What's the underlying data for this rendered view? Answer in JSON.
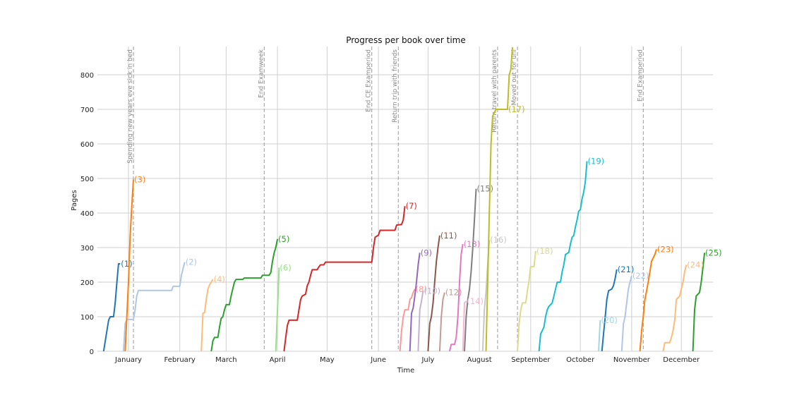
{
  "chart_data": {
    "type": "line",
    "title": "Progress per book over time",
    "xlabel": "Time",
    "ylabel": "Pages",
    "ylim": [
      0,
      880
    ],
    "xlim_days": [
      -19,
      352
    ],
    "grid": true,
    "legend": "none (inline end labels)",
    "x_ticks": [
      {
        "label": "January",
        "day": 0
      },
      {
        "label": "February",
        "day": 31
      },
      {
        "label": "March",
        "day": 59
      },
      {
        "label": "April",
        "day": 90
      },
      {
        "label": "May",
        "day": 120
      },
      {
        "label": "June",
        "day": 151
      },
      {
        "label": "July",
        "day": 181
      },
      {
        "label": "August",
        "day": 212
      },
      {
        "label": "September",
        "day": 243
      },
      {
        "label": "October",
        "day": 273
      },
      {
        "label": "November",
        "day": 304
      },
      {
        "label": "December",
        "day": 334
      }
    ],
    "y_ticks": [
      0,
      100,
      200,
      300,
      400,
      500,
      600,
      700,
      800
    ],
    "events": [
      {
        "label": "Spending new years eve sick in bed",
        "day": 3
      },
      {
        "label": "End Examweek",
        "day": 82
      },
      {
        "label": "End CE Examperiod",
        "day": 147
      },
      {
        "label": "Return trip with friends",
        "day": 163
      },
      {
        "label": "Return travel with parents",
        "day": 223
      },
      {
        "label": "Moved out for uni",
        "day": 235
      },
      {
        "label": "End Examperiod",
        "day": 311
      }
    ],
    "series": [
      {
        "name": "(1)",
        "color": "#1f77b4",
        "points": [
          [
            -15,
            0
          ],
          [
            -13,
            60
          ],
          [
            -12,
            90
          ],
          [
            -11,
            100
          ],
          [
            -9,
            100
          ],
          [
            -8,
            140
          ],
          [
            -7,
            200
          ],
          [
            -6,
            253
          ],
          [
            -5,
            253
          ]
        ]
      },
      {
        "name": "(2)",
        "color": "#aec7e8",
        "points": [
          [
            -3,
            0
          ],
          [
            -2,
            80
          ],
          [
            -1,
            92
          ],
          [
            3,
            92
          ],
          [
            4,
            120
          ],
          [
            5,
            160
          ],
          [
            6,
            176
          ],
          [
            26,
            176
          ],
          [
            27,
            188
          ],
          [
            31,
            188
          ],
          [
            32,
            220
          ],
          [
            34,
            258
          ]
        ]
      },
      {
        "name": "(3)",
        "color": "#ff7f0e",
        "points": [
          [
            -2,
            0
          ],
          [
            0,
            200
          ],
          [
            1,
            330
          ],
          [
            2,
            420
          ],
          [
            3,
            497
          ]
        ]
      },
      {
        "name": "(4)",
        "color": "#ffbb78",
        "points": [
          [
            44,
            0
          ],
          [
            45,
            110
          ],
          [
            46,
            112
          ],
          [
            47,
            150
          ],
          [
            48,
            180
          ],
          [
            49,
            192
          ],
          [
            51,
            208
          ]
        ]
      },
      {
        "name": "(5)",
        "color": "#2ca02c",
        "points": [
          [
            50,
            0
          ],
          [
            51,
            30
          ],
          [
            52,
            40
          ],
          [
            54,
            40
          ],
          [
            55,
            70
          ],
          [
            56,
            95
          ],
          [
            57,
            100
          ],
          [
            58,
            120
          ],
          [
            59,
            135
          ],
          [
            61,
            135
          ],
          [
            62,
            160
          ],
          [
            63,
            180
          ],
          [
            64,
            200
          ],
          [
            65,
            208
          ],
          [
            69,
            208
          ],
          [
            70,
            212
          ],
          [
            80,
            212
          ],
          [
            81,
            220
          ],
          [
            85,
            220
          ],
          [
            86,
            228
          ],
          [
            87,
            260
          ],
          [
            88,
            285
          ],
          [
            89,
            300
          ],
          [
            90,
            325
          ]
        ]
      },
      {
        "name": "(6)",
        "color": "#98df8a",
        "points": [
          [
            89,
            0
          ],
          [
            90,
            120
          ],
          [
            91,
            242
          ]
        ]
      },
      {
        "name": "(7)",
        "color": "#d62728",
        "points": [
          [
            94,
            0
          ],
          [
            95,
            40
          ],
          [
            96,
            75
          ],
          [
            97,
            90
          ],
          [
            102,
            90
          ],
          [
            103,
            120
          ],
          [
            104,
            150
          ],
          [
            105,
            160
          ],
          [
            107,
            165
          ],
          [
            108,
            190
          ],
          [
            109,
            200
          ],
          [
            110,
            220
          ],
          [
            111,
            236
          ],
          [
            114,
            236
          ],
          [
            115,
            244
          ],
          [
            116,
            250
          ],
          [
            118,
            250
          ],
          [
            119,
            258
          ],
          [
            147,
            258
          ],
          [
            148,
            300
          ],
          [
            149,
            330
          ],
          [
            151,
            336
          ],
          [
            152,
            350
          ],
          [
            161,
            350
          ],
          [
            162,
            365
          ],
          [
            165,
            367
          ],
          [
            166,
            380
          ],
          [
            167,
            420
          ]
        ]
      },
      {
        "name": "(8)",
        "color": "#ff9896",
        "points": [
          [
            164,
            0
          ],
          [
            165,
            60
          ],
          [
            166,
            100
          ],
          [
            167,
            120
          ],
          [
            169,
            120
          ],
          [
            170,
            150
          ],
          [
            171,
            155
          ],
          [
            172,
            170
          ],
          [
            173,
            180
          ]
        ]
      },
      {
        "name": "(9)",
        "color": "#9467bd",
        "points": [
          [
            170,
            0
          ],
          [
            171,
            110
          ],
          [
            172,
            125
          ],
          [
            173,
            160
          ],
          [
            174,
            200
          ],
          [
            175,
            250
          ],
          [
            176,
            285
          ]
        ]
      },
      {
        "name": "(10)",
        "color": "#c5b0d5",
        "points": [
          [
            175,
            0
          ],
          [
            176,
            120
          ],
          [
            177,
            145
          ],
          [
            178,
            175
          ]
        ]
      },
      {
        "name": "(11)",
        "color": "#8c564b",
        "points": [
          [
            181,
            0
          ],
          [
            182,
            80
          ],
          [
            183,
            100
          ],
          [
            184,
            140
          ],
          [
            185,
            200
          ],
          [
            186,
            260
          ],
          [
            187,
            300
          ],
          [
            188,
            335
          ]
        ]
      },
      {
        "name": "(12)",
        "color": "#c49c94",
        "points": [
          [
            188,
            0
          ],
          [
            189,
            100
          ],
          [
            190,
            150
          ],
          [
            191,
            170
          ]
        ]
      },
      {
        "name": "(13)",
        "color": "#e377c2",
        "points": [
          [
            194,
            0
          ],
          [
            195,
            20
          ],
          [
            197,
            20
          ],
          [
            198,
            40
          ],
          [
            199,
            100
          ],
          [
            200,
            200
          ],
          [
            201,
            280
          ],
          [
            202,
            310
          ]
        ]
      },
      {
        "name": "(14)",
        "color": "#f7b6d2",
        "points": [
          [
            202,
            0
          ],
          [
            203,
            140
          ],
          [
            204,
            145
          ]
        ]
      },
      {
        "name": "(15)",
        "color": "#7f7f7f",
        "points": [
          [
            203,
            0
          ],
          [
            204,
            100
          ],
          [
            205,
            150
          ],
          [
            206,
            180
          ],
          [
            207,
            230
          ],
          [
            208,
            300
          ],
          [
            209,
            380
          ],
          [
            210,
            470
          ]
        ]
      },
      {
        "name": "(16)",
        "color": "#c7c7c7",
        "points": [
          [
            214,
            0
          ],
          [
            215,
            120
          ],
          [
            216,
            170
          ],
          [
            217,
            250
          ],
          [
            218,
            322
          ]
        ]
      },
      {
        "name": "(17)",
        "color": "#bcbd22",
        "points": [
          [
            216,
            0
          ],
          [
            217,
            200
          ],
          [
            218,
            400
          ],
          [
            219,
            600
          ],
          [
            220,
            680
          ],
          [
            221,
            690
          ],
          [
            222,
            700
          ],
          [
            229,
            700
          ],
          [
            230,
            800
          ],
          [
            231,
            815
          ],
          [
            232,
            880
          ]
        ]
      },
      {
        "name": "(18)",
        "color": "#dbdb8d",
        "points": [
          [
            235,
            0
          ],
          [
            236,
            80
          ],
          [
            237,
            120
          ],
          [
            238,
            140
          ],
          [
            240,
            140
          ],
          [
            241,
            175
          ],
          [
            242,
            205
          ],
          [
            243,
            245
          ],
          [
            245,
            245
          ],
          [
            246,
            290
          ]
        ]
      },
      {
        "name": "(19)",
        "color": "#17becf",
        "points": [
          [
            248,
            0
          ],
          [
            249,
            50
          ],
          [
            250,
            60
          ],
          [
            251,
            70
          ],
          [
            252,
            100
          ],
          [
            253,
            120
          ],
          [
            254,
            130
          ],
          [
            256,
            140
          ],
          [
            257,
            160
          ],
          [
            258,
            180
          ],
          [
            259,
            200
          ],
          [
            261,
            200
          ],
          [
            262,
            230
          ],
          [
            263,
            250
          ],
          [
            264,
            280
          ],
          [
            266,
            286
          ],
          [
            267,
            310
          ],
          [
            268,
            330
          ],
          [
            269,
            335
          ],
          [
            270,
            360
          ],
          [
            271,
            380
          ],
          [
            272,
            405
          ],
          [
            273,
            410
          ],
          [
            274,
            440
          ],
          [
            275,
            460
          ],
          [
            276,
            490
          ],
          [
            277,
            550
          ]
        ]
      },
      {
        "name": "(20)",
        "color": "#9edae5",
        "points": [
          [
            284,
            0
          ],
          [
            285,
            90
          ]
        ]
      },
      {
        "name": "(21)",
        "color": "#1f77b4",
        "points": [
          [
            286,
            0
          ],
          [
            287,
            50
          ],
          [
            288,
            100
          ],
          [
            289,
            150
          ],
          [
            290,
            175
          ],
          [
            292,
            180
          ],
          [
            293,
            190
          ],
          [
            294,
            210
          ],
          [
            295,
            237
          ]
        ]
      },
      {
        "name": "(22)",
        "color": "#aec7e8",
        "points": [
          [
            298,
            0
          ],
          [
            299,
            80
          ],
          [
            300,
            100
          ],
          [
            301,
            140
          ],
          [
            302,
            180
          ],
          [
            303,
            200
          ],
          [
            304,
            218
          ]
        ]
      },
      {
        "name": "(23)",
        "color": "#ff7f0e",
        "points": [
          [
            309,
            0
          ],
          [
            310,
            60
          ],
          [
            311,
            100
          ],
          [
            312,
            150
          ],
          [
            313,
            175
          ],
          [
            314,
            200
          ],
          [
            315,
            230
          ],
          [
            316,
            260
          ],
          [
            318,
            280
          ],
          [
            319,
            295
          ]
        ]
      },
      {
        "name": "(24)",
        "color": "#ffbb78",
        "points": [
          [
            323,
            0
          ],
          [
            324,
            25
          ],
          [
            327,
            25
          ],
          [
            328,
            40
          ],
          [
            329,
            60
          ],
          [
            330,
            90
          ],
          [
            331,
            150
          ],
          [
            333,
            160
          ],
          [
            334,
            180
          ],
          [
            335,
            200
          ],
          [
            336,
            230
          ],
          [
            337,
            250
          ]
        ]
      },
      {
        "name": "(25)",
        "color": "#2ca02c",
        "points": [
          [
            341,
            0
          ],
          [
            342,
            120
          ],
          [
            343,
            160
          ],
          [
            345,
            170
          ],
          [
            346,
            200
          ],
          [
            347,
            240
          ],
          [
            348,
            285
          ]
        ]
      }
    ]
  }
}
